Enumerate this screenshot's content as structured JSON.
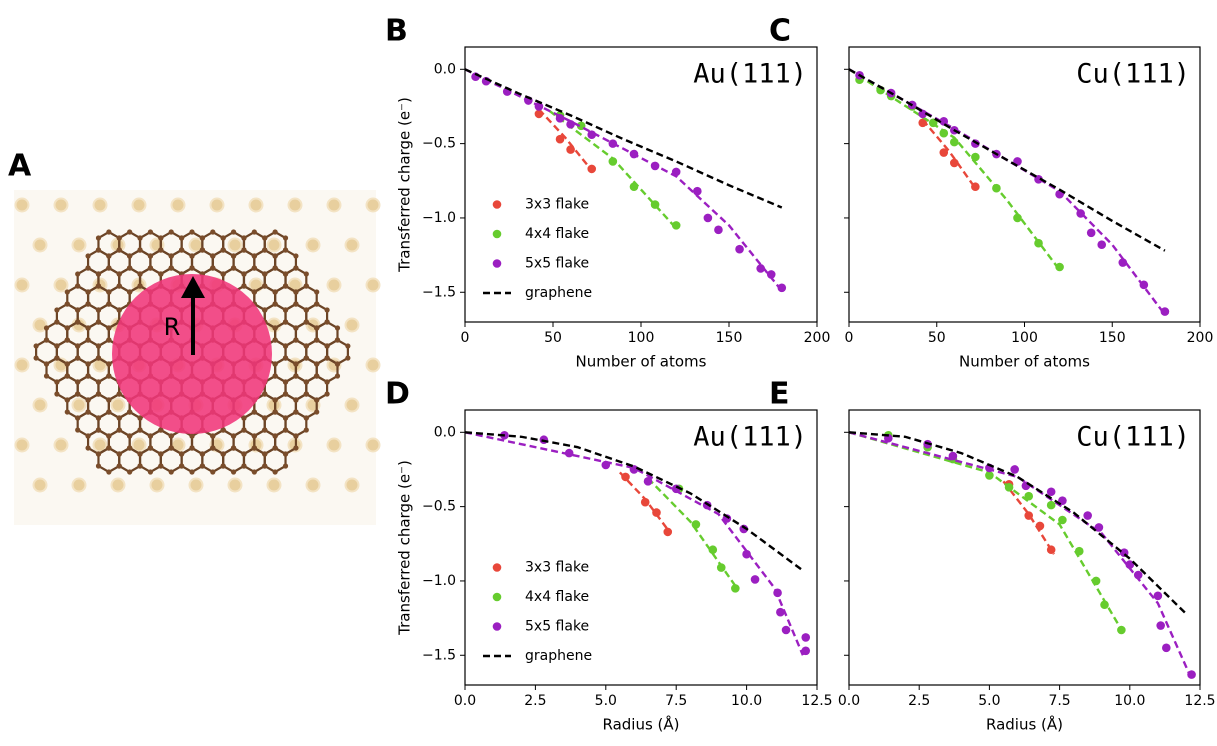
{
  "illustration": {
    "panel": "A",
    "label": "R"
  },
  "chart_data": [
    {
      "type": "scatter",
      "panel": "B",
      "annotation": "Au(111)",
      "xlabel": "Number of atoms",
      "ylabel": "Transferred charge (e⁻)",
      "xlim": [
        0,
        200
      ],
      "ylim": [
        -1.7,
        0.15
      ],
      "xticks": [
        0,
        50,
        100,
        150,
        200
      ],
      "yticks": [
        {
          "value": 0,
          "label": "0.0"
        },
        {
          "value": -0.5,
          "label": "−0.5"
        },
        {
          "value": -1,
          "label": "−1.0"
        },
        {
          "value": -1.5,
          "label": "−1.5"
        }
      ],
      "legend": "lower left",
      "series": [
        {
          "name": "3x3 flake",
          "color": "#e8473a",
          "style": "dots",
          "x": [
            42,
            54,
            60,
            72
          ],
          "values": [
            -0.3,
            -0.47,
            -0.54,
            -0.67
          ],
          "fit_x": [
            42,
            57,
            72
          ],
          "fit_values": [
            -0.27,
            -0.46,
            -0.68
          ]
        },
        {
          "name": "4x4 flake",
          "color": "#66cc2e",
          "style": "dots",
          "x": [
            54,
            66,
            84,
            96,
            108,
            120
          ],
          "values": [
            -0.31,
            -0.38,
            -0.62,
            -0.79,
            -0.91,
            -1.05
          ],
          "fit_x": [
            48,
            84,
            120
          ],
          "fit_values": [
            -0.28,
            -0.6,
            -1.07
          ]
        },
        {
          "name": "5x5 flake",
          "color": "#9b1fc1",
          "style": "dots",
          "x": [
            6,
            12,
            24,
            36,
            42,
            54,
            60,
            72,
            84,
            96,
            108,
            120,
            132,
            138,
            144,
            156,
            168,
            174,
            180
          ],
          "values": [
            -0.05,
            -0.08,
            -0.15,
            -0.21,
            -0.25,
            -0.33,
            -0.37,
            -0.44,
            -0.5,
            -0.57,
            -0.65,
            -0.69,
            -0.82,
            -1.0,
            -1.08,
            -1.21,
            -1.34,
            -1.38,
            -1.47
          ],
          "fit_x": [
            0,
            60,
            120,
            150,
            180
          ],
          "fit_values": [
            0,
            -0.35,
            -0.72,
            -1.05,
            -1.49
          ]
        },
        {
          "name": "graphene",
          "color": "#000000",
          "style": "dashed",
          "x": [
            0,
            30,
            60,
            90,
            120,
            150,
            180
          ],
          "values": [
            0,
            -0.16,
            -0.31,
            -0.47,
            -0.62,
            -0.78,
            -0.93
          ]
        }
      ]
    },
    {
      "type": "scatter",
      "panel": "C",
      "annotation": "Cu(111)",
      "xlabel": "Number of atoms",
      "xlim": [
        0,
        200
      ],
      "ylim": [
        -1.7,
        0.15
      ],
      "xticks": [
        0,
        50,
        100,
        150,
        200
      ],
      "yticks": [
        0,
        -0.5,
        -1,
        -1.5
      ],
      "series": [
        {
          "color": "#e8473a",
          "style": "dots",
          "x": [
            42,
            54,
            60,
            72
          ],
          "values": [
            -0.36,
            -0.56,
            -0.63,
            -0.79
          ],
          "fit_x": [
            42,
            57,
            72
          ],
          "fit_values": [
            -0.34,
            -0.55,
            -0.8
          ]
        },
        {
          "color": "#66cc2e",
          "style": "dots",
          "x": [
            6,
            18,
            24,
            36,
            48,
            54,
            60,
            72,
            84,
            96,
            108,
            120
          ],
          "values": [
            -0.07,
            -0.14,
            -0.18,
            -0.25,
            -0.36,
            -0.43,
            -0.49,
            -0.59,
            -0.8,
            -1.0,
            -1.17,
            -1.33
          ],
          "fit_x": [
            0,
            60,
            90,
            120
          ],
          "fit_values": [
            0,
            -0.46,
            -0.88,
            -1.35
          ]
        },
        {
          "color": "#9b1fc1",
          "style": "dots",
          "x": [
            6,
            24,
            36,
            42,
            54,
            60,
            72,
            84,
            96,
            108,
            120,
            132,
            138,
            144,
            156,
            168,
            180
          ],
          "values": [
            -0.04,
            -0.16,
            -0.24,
            -0.3,
            -0.35,
            -0.41,
            -0.5,
            -0.57,
            -0.62,
            -0.74,
            -0.84,
            -0.97,
            -1.1,
            -1.18,
            -1.3,
            -1.45,
            -1.63
          ],
          "fit_x": [
            0,
            60,
            120,
            150,
            180
          ],
          "fit_values": [
            0,
            -0.4,
            -0.82,
            -1.18,
            -1.65
          ]
        },
        {
          "color": "#000000",
          "style": "dashed",
          "x": [
            0,
            30,
            60,
            90,
            120,
            150,
            180
          ],
          "values": [
            0,
            -0.2,
            -0.41,
            -0.61,
            -0.81,
            -1.02,
            -1.22
          ]
        }
      ]
    },
    {
      "type": "scatter",
      "panel": "D",
      "annotation": "Au(111)",
      "xlabel": "Radius (Å)",
      "ylabel": "Transferred charge (e⁻)",
      "xlim": [
        0,
        12.5
      ],
      "ylim": [
        -1.7,
        0.15
      ],
      "xticks": [
        {
          "value": 0,
          "label": "0.0"
        },
        2.5,
        {
          "value": 5,
          "label": "5.0"
        },
        7.5,
        {
          "value": 10,
          "label": "10.0"
        },
        12.5
      ],
      "yticks": [
        {
          "value": 0,
          "label": "0.0"
        },
        {
          "value": -0.5,
          "label": "−0.5"
        },
        {
          "value": -1,
          "label": "−1.0"
        },
        {
          "value": -1.5,
          "label": "−1.5"
        }
      ],
      "legend": "lower left",
      "series": [
        {
          "name": "3x3 flake",
          "color": "#e8473a",
          "style": "dots",
          "x": [
            5.7,
            6.4,
            6.8,
            7.2
          ],
          "values": [
            -0.3,
            -0.47,
            -0.54,
            -0.67
          ],
          "fit_x": [
            5.5,
            6.4,
            7.3
          ],
          "fit_values": [
            -0.27,
            -0.45,
            -0.68
          ]
        },
        {
          "name": "4x4 flake",
          "color": "#66cc2e",
          "style": "dots",
          "x": [
            7.6,
            8.2,
            8.8,
            9.1,
            9.6
          ],
          "values": [
            -0.38,
            -0.62,
            -0.79,
            -0.91,
            -1.05
          ],
          "fit_x": [
            6.5,
            8,
            9.7
          ],
          "fit_values": [
            -0.31,
            -0.6,
            -1.06
          ]
        },
        {
          "name": "5x5 flake",
          "color": "#9b1fc1",
          "style": "dots",
          "x": [
            1.4,
            2.8,
            3.7,
            5.0,
            6.0,
            6.5,
            7.5,
            8.6,
            9.3,
            9.9,
            10.0,
            10.3,
            11.1,
            11.2,
            11.4,
            12.1,
            12.1
          ],
          "values": [
            -0.02,
            -0.05,
            -0.14,
            -0.22,
            -0.25,
            -0.33,
            -0.38,
            -0.49,
            -0.58,
            -0.65,
            -0.82,
            -0.99,
            -1.08,
            -1.21,
            -1.33,
            -1.38,
            -1.47
          ],
          "fit_x": [
            0,
            6,
            9,
            11,
            12
          ],
          "fit_values": [
            0,
            -0.24,
            -0.55,
            -1.05,
            -1.5
          ]
        },
        {
          "name": "graphene",
          "color": "#000000",
          "style": "dashed",
          "x": [
            0,
            2,
            4,
            6,
            8,
            10,
            12
          ],
          "values": [
            0,
            -0.03,
            -0.1,
            -0.23,
            -0.41,
            -0.65,
            -0.93
          ]
        }
      ]
    },
    {
      "type": "scatter",
      "panel": "E",
      "annotation": "Cu(111)",
      "xlabel": "Radius (Å)",
      "xlim": [
        0,
        12.5
      ],
      "ylim": [
        -1.7,
        0.15
      ],
      "xticks": [
        {
          "value": 0,
          "label": "0.0"
        },
        2.5,
        {
          "value": 5,
          "label": "5.0"
        },
        7.5,
        {
          "value": 10,
          "label": "10.0"
        },
        12.5
      ],
      "yticks": [
        0,
        -0.5,
        -1,
        -1.5
      ],
      "series": [
        {
          "color": "#e8473a",
          "style": "dots",
          "x": [
            5.7,
            6.4,
            6.8,
            7.2
          ],
          "values": [
            -0.35,
            -0.56,
            -0.63,
            -0.79
          ],
          "fit_x": [
            5.5,
            6.4,
            7.3
          ],
          "fit_values": [
            -0.33,
            -0.55,
            -0.82
          ]
        },
        {
          "color": "#66cc2e",
          "style": "dots",
          "x": [
            1.4,
            2.8,
            3.7,
            5.0,
            5.7,
            6.4,
            7.2,
            7.6,
            8.2,
            8.8,
            9.1,
            9.7
          ],
          "values": [
            -0.02,
            -0.1,
            -0.18,
            -0.29,
            -0.37,
            -0.43,
            -0.49,
            -0.59,
            -0.8,
            -1.0,
            -1.16,
            -1.33
          ],
          "fit_x": [
            0,
            5,
            7.5,
            9.8
          ],
          "fit_values": [
            0,
            -0.27,
            -0.62,
            -1.36
          ]
        },
        {
          "color": "#9b1fc1",
          "style": "dots",
          "x": [
            1.4,
            2.8,
            3.7,
            5.0,
            5.9,
            6.3,
            7.2,
            7.6,
            8.5,
            8.9,
            9.8,
            10.0,
            10.3,
            11.0,
            11.1,
            11.3,
            12.2
          ],
          "values": [
            -0.04,
            -0.08,
            -0.16,
            -0.24,
            -0.25,
            -0.36,
            -0.4,
            -0.46,
            -0.56,
            -0.64,
            -0.81,
            -0.89,
            -0.96,
            -1.1,
            -1.3,
            -1.45,
            -1.63
          ],
          "fit_x": [
            0,
            6,
            9,
            11,
            12.2
          ],
          "fit_values": [
            0,
            -0.3,
            -0.68,
            -1.15,
            -1.66
          ]
        },
        {
          "color": "#000000",
          "style": "dashed",
          "x": [
            0,
            2,
            4,
            6,
            8,
            10,
            12
          ],
          "values": [
            0,
            -0.03,
            -0.14,
            -0.3,
            -0.54,
            -0.85,
            -1.22
          ]
        }
      ]
    }
  ]
}
